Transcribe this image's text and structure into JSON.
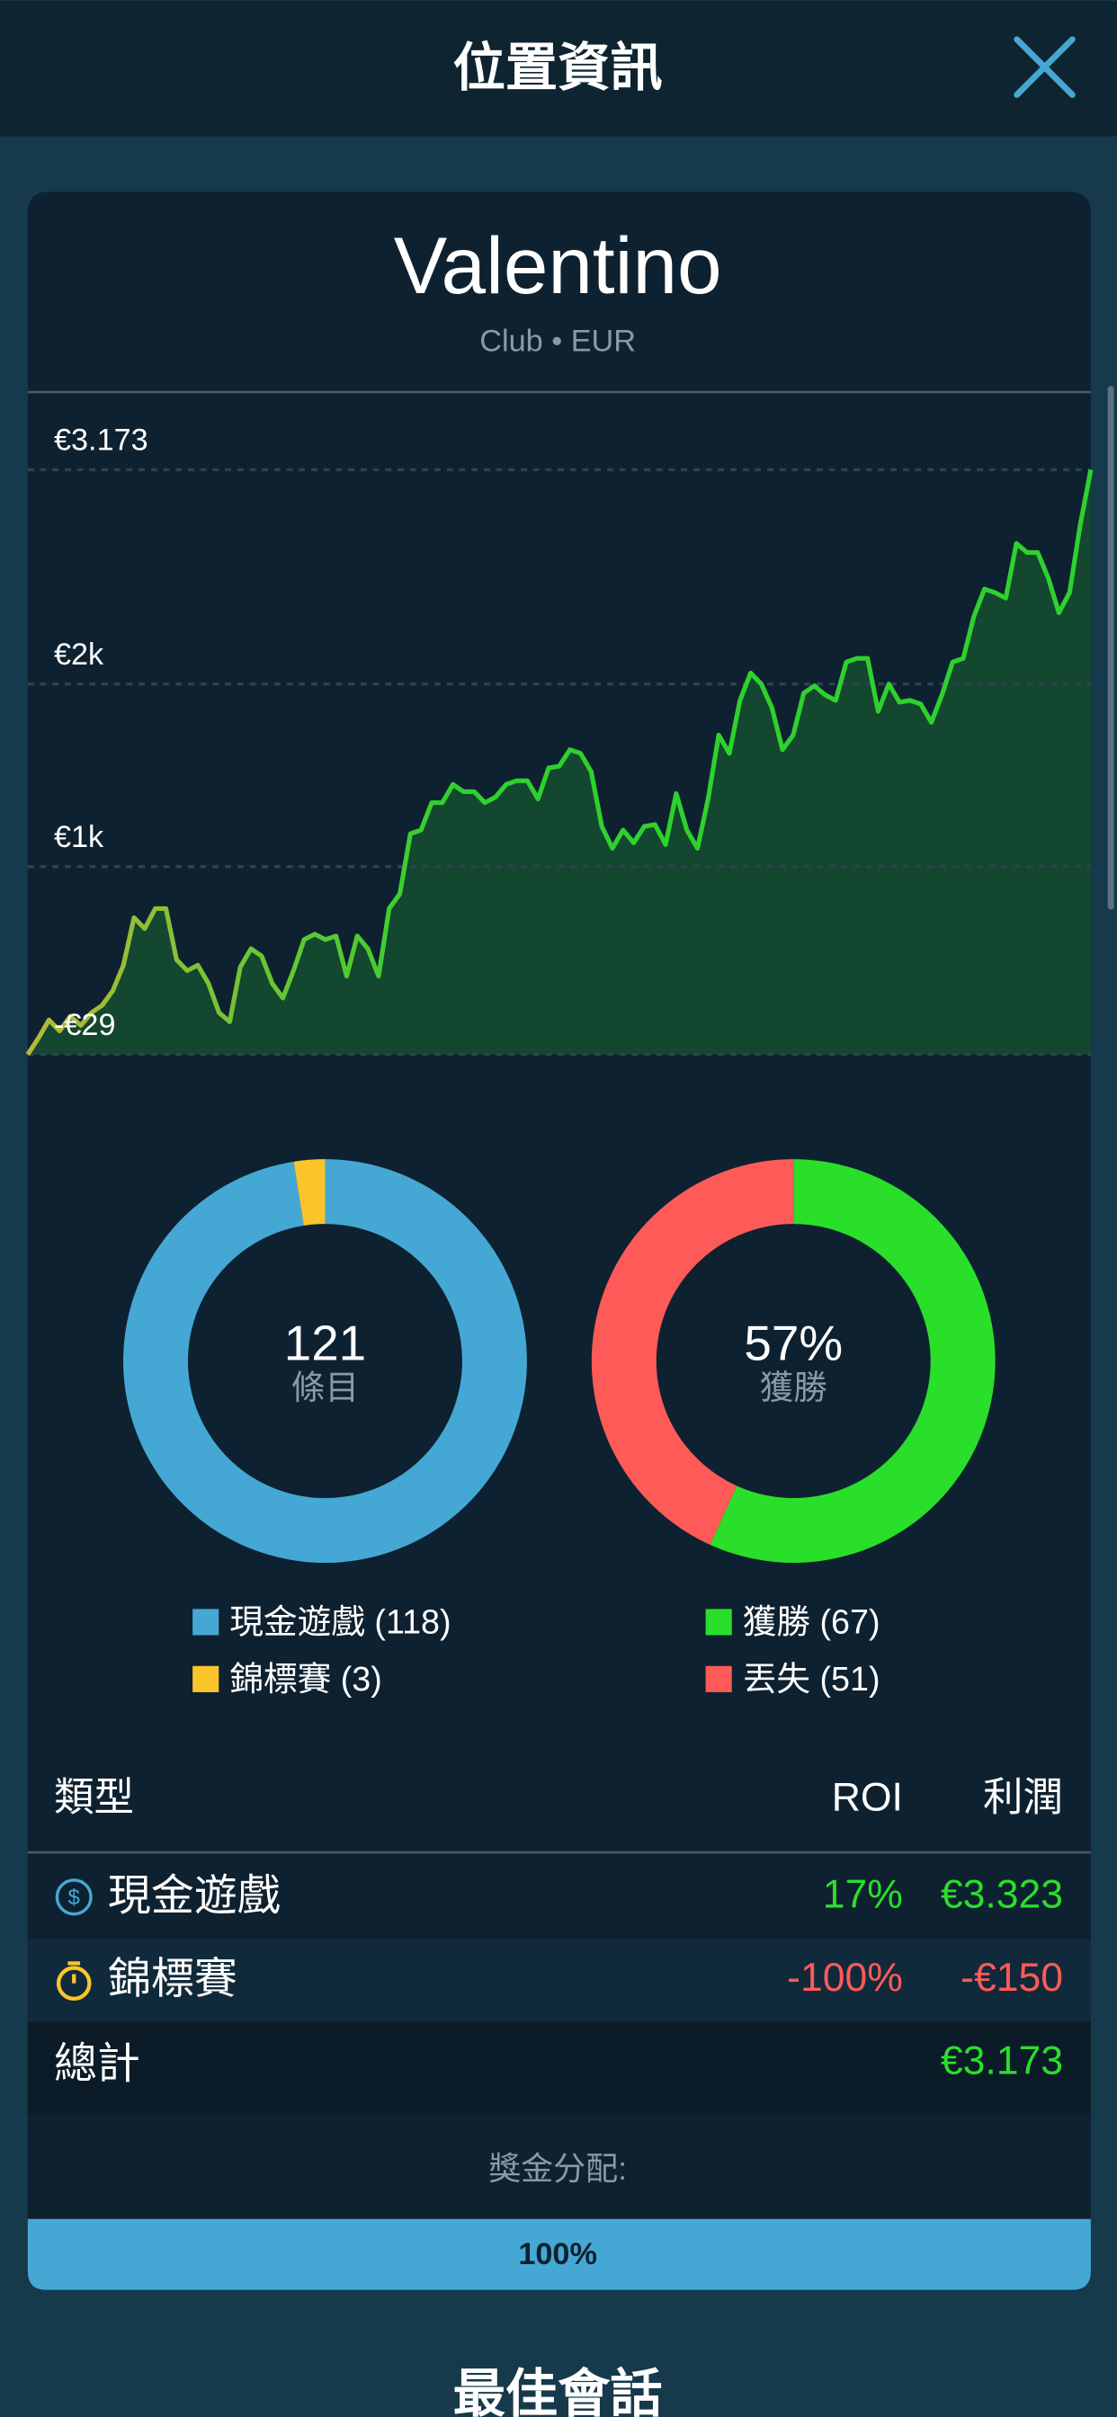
{
  "header": {
    "title": "位置資訊"
  },
  "card": {
    "name": "Valentino",
    "subtitle": "Club • EUR"
  },
  "chart_data": {
    "type": "line",
    "color": "#2ed12e",
    "start_color": "#b5b83a",
    "ylim": [
      -29,
      3590
    ],
    "yticks": [
      {
        "value": 3173,
        "label": "€3.173"
      },
      {
        "value": 2000,
        "label": "€2k"
      },
      {
        "value": 1000,
        "label": "€1k"
      },
      {
        "value": -29,
        "label": "-€29"
      }
    ],
    "grid": true,
    "values": [
      -29,
      60,
      160,
      100,
      180,
      130,
      200,
      240,
      320,
      460,
      720,
      660,
      770,
      770,
      490,
      430,
      460,
      360,
      200,
      150,
      450,
      550,
      510,
      360,
      280,
      430,
      600,
      630,
      600,
      620,
      400,
      620,
      550,
      400,
      770,
      850,
      1180,
      1200,
      1350,
      1350,
      1450,
      1410,
      1410,
      1350,
      1380,
      1450,
      1470,
      1470,
      1370,
      1540,
      1550,
      1640,
      1620,
      1520,
      1220,
      1100,
      1200,
      1130,
      1220,
      1230,
      1120,
      1400,
      1200,
      1100,
      1370,
      1720,
      1620,
      1910,
      2060,
      2000,
      1870,
      1640,
      1720,
      1950,
      1990,
      1940,
      1910,
      2120,
      2140,
      2140,
      1850,
      2000,
      1900,
      1910,
      1890,
      1790,
      1940,
      2120,
      2140,
      2370,
      2520,
      2500,
      2470,
      2770,
      2720,
      2720,
      2580,
      2390,
      2500,
      2870,
      3173
    ]
  },
  "donuts": [
    {
      "type": "pie",
      "center_value": "121",
      "center_label": "條目",
      "series": [
        {
          "name": "現金遊戲 (118)",
          "color": "#45a8d4",
          "values": [
            118
          ]
        },
        {
          "name": "錦標賽 (3)",
          "color": "#fbc52a",
          "values": [
            3
          ]
        }
      ]
    },
    {
      "type": "pie",
      "center_value": "57%",
      "center_label": "獲勝",
      "series": [
        {
          "name": "獲勝 (67)",
          "color": "#2adf2a",
          "values": [
            67
          ]
        },
        {
          "name": "丟失 (51)",
          "color": "#fd5a58",
          "values": [
            51
          ]
        }
      ]
    }
  ],
  "table": {
    "header": [
      "類型",
      "ROI",
      "利潤"
    ],
    "rows": [
      [
        "現金遊戲",
        "17%",
        "€3.323"
      ],
      [
        "錦標賽",
        "-100%",
        "-€150"
      ]
    ],
    "total": [
      "總計",
      "€3.173"
    ]
  },
  "prize": {
    "label": "獎金分配:",
    "bar": "100%"
  },
  "next_section": "最佳會話"
}
